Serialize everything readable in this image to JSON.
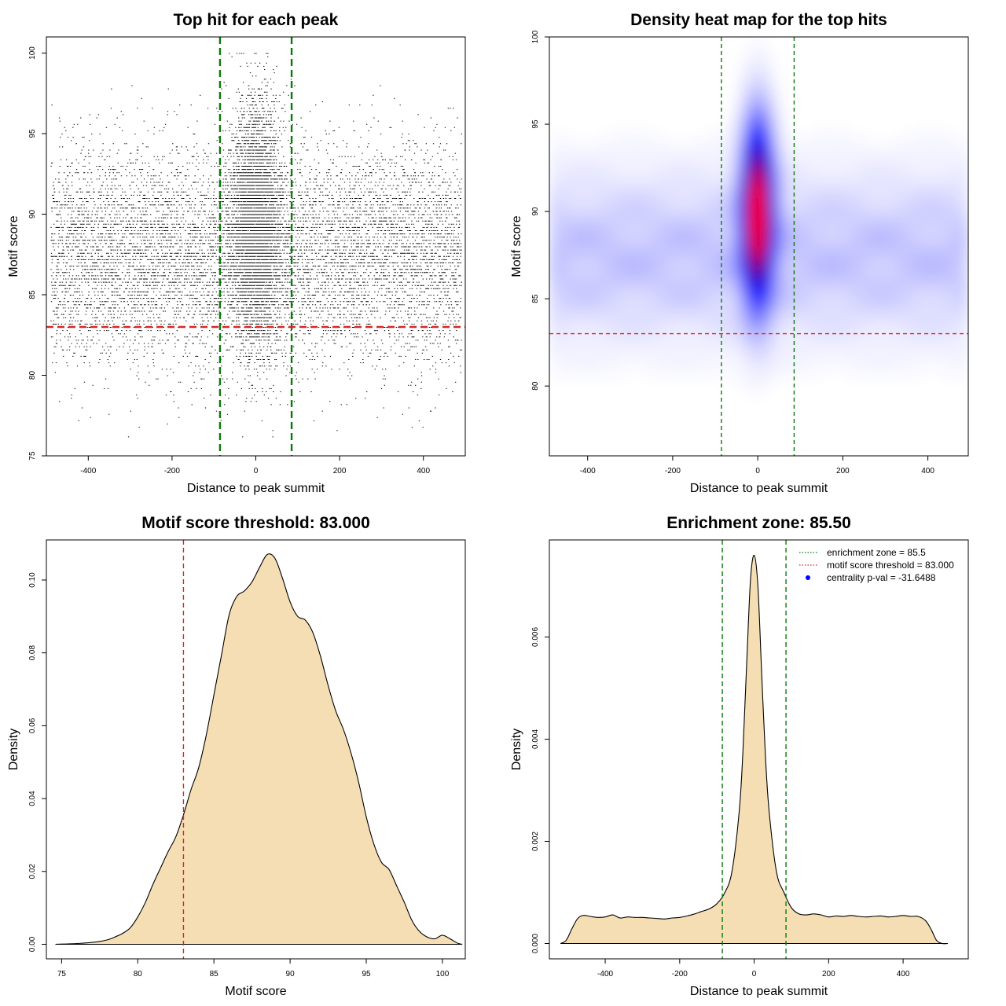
{
  "chart_data": [
    {
      "id": "scatter",
      "type": "scatter",
      "title": "Top hit for each peak",
      "xlabel": "Distance to peak summit",
      "ylabel": "Motif score",
      "xlim": [
        -500,
        500
      ],
      "ylim": [
        75,
        101
      ],
      "xticks": [
        -400,
        -200,
        0,
        200,
        400
      ],
      "yticks": [
        75,
        80,
        85,
        90,
        95,
        100
      ],
      "hlines": [
        {
          "value": 83,
          "color": "#d62728",
          "style": "dashed"
        }
      ],
      "vlines": [
        {
          "value": -85.5,
          "color": "#0a7a0a",
          "style": "dashed"
        },
        {
          "value": 85.5,
          "color": "#0a7a0a",
          "style": "dashed"
        }
      ],
      "point_color": "#000000",
      "n_points_approx": 14000,
      "distribution": {
        "background_x_range": [
          -490,
          490
        ],
        "background_score_mean": 87.5,
        "background_score_sd": 3.3,
        "central_x_sd": 30,
        "central_score_mean": 89.5,
        "central_score_sd": 3.6
      }
    },
    {
      "id": "heatmap",
      "type": "heatmap",
      "title": "Density heat map for the top hits",
      "xlabel": "Distance to peak summit",
      "ylabel": "Motif score",
      "xlim": [
        -490,
        495
      ],
      "ylim": [
        76,
        100
      ],
      "xticks": [
        -400,
        -200,
        0,
        200,
        400
      ],
      "yticks": [
        80,
        85,
        90,
        95,
        100
      ],
      "hlines": [
        {
          "value": 83,
          "color": "#d62728",
          "style": "dashed"
        }
      ],
      "vlines": [
        {
          "value": -85.5,
          "color": "#0a7a0a",
          "style": "dashed"
        },
        {
          "value": 85.5,
          "color": "#0a7a0a",
          "style": "dashed"
        }
      ],
      "colormap": [
        "#ffffff",
        "#0000ff",
        "#ff0000"
      ],
      "peak": {
        "x": 0,
        "score": 90
      },
      "grid": false
    },
    {
      "id": "score_density",
      "type": "area",
      "title": "Motif score threshold: 83.000",
      "xlabel": "Motif score",
      "ylabel": "Density",
      "xlim": [
        74,
        101.5
      ],
      "ylim": [
        -0.004,
        0.111
      ],
      "xticks": [
        75,
        80,
        85,
        90,
        95,
        100
      ],
      "yticks": [
        0.0,
        0.02,
        0.04,
        0.06,
        0.08,
        0.1
      ],
      "ytick_labels": [
        "0.00",
        "0.02",
        "0.04",
        "0.06",
        "0.08",
        "0.10"
      ],
      "fill": "#f5deb3",
      "vlines": [
        {
          "value": 83,
          "color": "#d62728",
          "style": "dashed"
        }
      ],
      "x": [
        74.6,
        76,
        77,
        78,
        78.5,
        79,
        79.5,
        80,
        80.5,
        81,
        81.5,
        82,
        82.5,
        83,
        83.5,
        84,
        84.5,
        85,
        85.5,
        86,
        86.5,
        87,
        87.5,
        88,
        88.5,
        89,
        89.5,
        90,
        90.5,
        91,
        91.5,
        92,
        92.5,
        93,
        93.5,
        94,
        94.5,
        95,
        95.5,
        96,
        96.5,
        97,
        97.5,
        98,
        98.5,
        99,
        99.5,
        100,
        100.5,
        101,
        101.3
      ],
      "y": [
        0.0,
        0.0002,
        0.0005,
        0.0012,
        0.002,
        0.003,
        0.0045,
        0.0075,
        0.0115,
        0.0165,
        0.021,
        0.0255,
        0.0295,
        0.0355,
        0.0425,
        0.0485,
        0.0575,
        0.0685,
        0.0795,
        0.0905,
        0.0955,
        0.097,
        0.0995,
        0.1035,
        0.107,
        0.106,
        0.1005,
        0.094,
        0.09,
        0.089,
        0.0855,
        0.079,
        0.071,
        0.064,
        0.059,
        0.0525,
        0.0445,
        0.035,
        0.0275,
        0.0225,
        0.0205,
        0.016,
        0.0115,
        0.0065,
        0.0035,
        0.002,
        0.0015,
        0.0025,
        0.0015,
        0.0003,
        0.0
      ]
    },
    {
      "id": "distance_density",
      "type": "area",
      "title": "Enrichment zone: 85.50",
      "xlabel": "Distance to peak summit",
      "ylabel": "Density",
      "xlim": [
        -550,
        575
      ],
      "ylim": [
        -0.0003,
        0.0079
      ],
      "xticks": [
        -400,
        -200,
        0,
        200,
        400
      ],
      "yticks": [
        0.0,
        0.002,
        0.004,
        0.006
      ],
      "ytick_labels": [
        "0.000",
        "0.002",
        "0.004",
        "0.006"
      ],
      "fill": "#f5deb3",
      "vlines": [
        {
          "value": -85.5,
          "color": "#0a7a0a",
          "style": "dashed"
        },
        {
          "value": 85.5,
          "color": "#0a7a0a",
          "style": "dashed"
        }
      ],
      "x": [
        -520,
        -505,
        -490,
        -475,
        -460,
        -440,
        -420,
        -400,
        -380,
        -360,
        -340,
        -320,
        -300,
        -280,
        -260,
        -240,
        -220,
        -200,
        -180,
        -160,
        -140,
        -120,
        -100,
        -80,
        -60,
        -40,
        -30,
        -20,
        -10,
        0,
        10,
        20,
        30,
        40,
        60,
        80,
        100,
        120,
        140,
        160,
        180,
        200,
        220,
        240,
        260,
        280,
        300,
        320,
        340,
        360,
        380,
        400,
        420,
        440,
        460,
        475,
        490,
        505,
        520
      ],
      "y": [
        0.0,
        6e-05,
        0.00028,
        0.00048,
        0.00055,
        0.00053,
        0.00051,
        0.00052,
        0.00056,
        0.0005,
        0.00052,
        0.00051,
        0.00051,
        0.0005,
        0.00049,
        0.00048,
        0.0005,
        0.00051,
        0.00054,
        0.00058,
        0.00063,
        0.00068,
        0.00078,
        0.00098,
        0.0014,
        0.0026,
        0.0038,
        0.0055,
        0.0071,
        0.0076,
        0.007,
        0.0053,
        0.0037,
        0.0026,
        0.0014,
        0.001,
        0.0007,
        0.00058,
        0.00056,
        0.00058,
        0.00056,
        0.00052,
        0.00054,
        0.00053,
        0.00055,
        0.00053,
        0.00052,
        0.00053,
        0.00054,
        0.00052,
        0.00053,
        0.00055,
        0.00053,
        0.00053,
        0.00045,
        0.00028,
        6e-05,
        0.0,
        0.0
      ],
      "legend": {
        "position": "top-right",
        "entries": [
          {
            "label": "enrichment zone = 85.5",
            "color": "#0a7a0a",
            "style": "dotted-line"
          },
          {
            "label": "motif score threshold = 83.000",
            "color": "#d62728",
            "style": "dotted-line"
          },
          {
            "label": "centrality p-val = -31.6488",
            "color": "#0000ff",
            "style": "point"
          }
        ]
      }
    }
  ]
}
